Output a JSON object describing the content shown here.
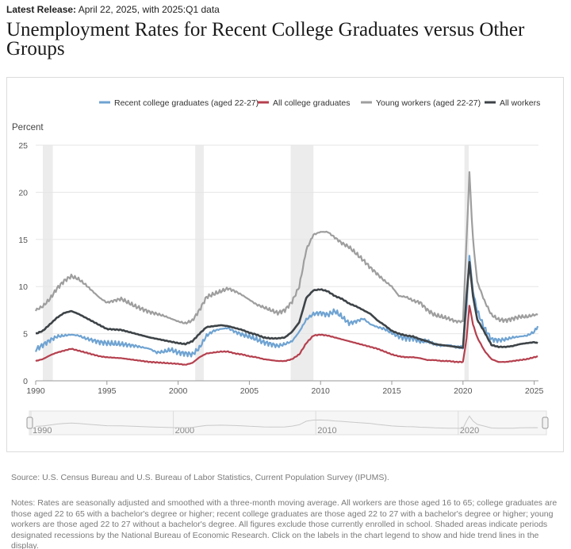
{
  "header": {
    "release_label": "Latest Release:",
    "release_text": "April 22, 2025, with 2025:Q1 data",
    "title": "Unemployment Rates for Recent College Graduates versus Other Groups"
  },
  "footer": {
    "source": "Source: U.S. Census Bureau and U.S. Bureau of Labor Statistics, Current Population Survey (IPUMS).",
    "notes": "Notes: Rates are seasonally adjusted and smoothed with a three-month moving average. All workers are those aged 16 to 65; college graduates are those aged 22 to 65 with a bachelor's degree or higher; recent college graduates are those aged 22 to 27 with a bachelor's degree or higher; young workers are those aged 22 to 27 without a bachelor's degree. All figures exclude those currently enrolled in school. Shaded areas indicate periods designated recessions by the National Bureau of Economic Research. Click on the labels in the chart legend to show and hide trend lines in the display."
  },
  "chart_data": {
    "type": "line",
    "ylabel": "Percent",
    "xlim": [
      1990,
      2025.3
    ],
    "ylim": [
      0,
      25
    ],
    "yticks": [
      "0",
      "5",
      "10",
      "15",
      "20",
      "25"
    ],
    "xticks": [
      "1990",
      "1995",
      "2000",
      "2005",
      "2010",
      "2015",
      "2020",
      "2025"
    ],
    "navigator_ticks": [
      "1990",
      "2000",
      "2010",
      "2020"
    ],
    "grid": true,
    "legend_position": "top-right",
    "recessions": [
      [
        1990.5,
        1991.2
      ],
      [
        2001.2,
        2001.8
      ],
      [
        2007.9,
        2009.5
      ],
      [
        2020.1,
        2020.4
      ]
    ],
    "series": [
      {
        "name": "Recent college graduates (aged 22-27)",
        "color": "#6fa3d2",
        "points": [
          [
            1990,
            3.3
          ],
          [
            1990.5,
            3.8
          ],
          [
            1991,
            4.3
          ],
          [
            1991.5,
            4.7
          ],
          [
            1992,
            4.8
          ],
          [
            1992.5,
            4.9
          ],
          [
            1993,
            4.8
          ],
          [
            1993.5,
            4.5
          ],
          [
            1994,
            4.3
          ],
          [
            1994.5,
            4.1
          ],
          [
            1995,
            4.0
          ],
          [
            1996,
            3.9
          ],
          [
            1997,
            3.7
          ],
          [
            1998,
            3.4
          ],
          [
            1998.5,
            3.0
          ],
          [
            1999,
            3.1
          ],
          [
            1999.5,
            3.3
          ],
          [
            2000,
            3.0
          ],
          [
            2000.5,
            2.9
          ],
          [
            2001,
            2.8
          ],
          [
            2001.5,
            3.5
          ],
          [
            2002,
            4.8
          ],
          [
            2002.5,
            5.3
          ],
          [
            2003,
            5.5
          ],
          [
            2003.5,
            5.6
          ],
          [
            2004,
            5.2
          ],
          [
            2004.5,
            4.9
          ],
          [
            2005,
            4.7
          ],
          [
            2005.5,
            4.4
          ],
          [
            2006,
            4.1
          ],
          [
            2006.5,
            3.9
          ],
          [
            2007,
            3.7
          ],
          [
            2007.5,
            3.9
          ],
          [
            2008,
            4.2
          ],
          [
            2008.5,
            5.2
          ],
          [
            2009,
            6.5
          ],
          [
            2009.5,
            7.1
          ],
          [
            2010,
            7.2
          ],
          [
            2010.5,
            7.0
          ],
          [
            2011,
            7.4
          ],
          [
            2011.5,
            6.8
          ],
          [
            2012,
            6.1
          ],
          [
            2012.5,
            6.3
          ],
          [
            2013,
            6.6
          ],
          [
            2013.5,
            6.0
          ],
          [
            2014,
            5.7
          ],
          [
            2014.5,
            5.5
          ],
          [
            2015,
            5.1
          ],
          [
            2015.5,
            4.7
          ],
          [
            2016,
            4.5
          ],
          [
            2016.5,
            4.5
          ],
          [
            2017,
            4.2
          ],
          [
            2017.5,
            4.2
          ],
          [
            2018,
            3.9
          ],
          [
            2018.5,
            3.7
          ],
          [
            2019,
            3.8
          ],
          [
            2019.5,
            3.6
          ],
          [
            2020,
            3.6
          ],
          [
            2020.25,
            8.0
          ],
          [
            2020.45,
            13.3
          ],
          [
            2020.7,
            9.5
          ],
          [
            2021,
            7.4
          ],
          [
            2021.5,
            5.6
          ],
          [
            2022,
            4.4
          ],
          [
            2022.5,
            4.3
          ],
          [
            2023,
            4.4
          ],
          [
            2023.5,
            4.6
          ],
          [
            2024,
            4.7
          ],
          [
            2024.5,
            4.8
          ],
          [
            2025,
            5.2
          ],
          [
            2025.25,
            5.8
          ]
        ]
      },
      {
        "name": "All college graduates",
        "color": "#b5404e",
        "points": [
          [
            1990,
            2.1
          ],
          [
            1990.5,
            2.3
          ],
          [
            1991,
            2.7
          ],
          [
            1991.5,
            3.0
          ],
          [
            1992,
            3.2
          ],
          [
            1992.5,
            3.4
          ],
          [
            1993,
            3.2
          ],
          [
            1993.5,
            3.0
          ],
          [
            1994,
            2.8
          ],
          [
            1994.5,
            2.6
          ],
          [
            1995,
            2.5
          ],
          [
            1996,
            2.4
          ],
          [
            1997,
            2.2
          ],
          [
            1998,
            2.0
          ],
          [
            1999,
            1.9
          ],
          [
            2000,
            1.8
          ],
          [
            2000.5,
            1.7
          ],
          [
            2001,
            1.9
          ],
          [
            2001.5,
            2.5
          ],
          [
            2002,
            2.9
          ],
          [
            2002.5,
            3.0
          ],
          [
            2003,
            3.1
          ],
          [
            2003.5,
            3.1
          ],
          [
            2004,
            2.9
          ],
          [
            2004.5,
            2.8
          ],
          [
            2005,
            2.6
          ],
          [
            2005.5,
            2.5
          ],
          [
            2006,
            2.3
          ],
          [
            2006.5,
            2.2
          ],
          [
            2007,
            2.1
          ],
          [
            2007.5,
            2.1
          ],
          [
            2008,
            2.3
          ],
          [
            2008.5,
            2.8
          ],
          [
            2009,
            4.0
          ],
          [
            2009.5,
            4.8
          ],
          [
            2010,
            4.9
          ],
          [
            2010.5,
            4.8
          ],
          [
            2011,
            4.6
          ],
          [
            2011.5,
            4.4
          ],
          [
            2012,
            4.2
          ],
          [
            2012.5,
            4.0
          ],
          [
            2013,
            3.8
          ],
          [
            2013.5,
            3.6
          ],
          [
            2014,
            3.4
          ],
          [
            2014.5,
            3.1
          ],
          [
            2015,
            2.8
          ],
          [
            2015.5,
            2.6
          ],
          [
            2016,
            2.5
          ],
          [
            2016.5,
            2.5
          ],
          [
            2017,
            2.4
          ],
          [
            2017.5,
            2.2
          ],
          [
            2018,
            2.2
          ],
          [
            2018.5,
            2.1
          ],
          [
            2019,
            2.1
          ],
          [
            2019.5,
            2.0
          ],
          [
            2020,
            2.0
          ],
          [
            2020.25,
            4.5
          ],
          [
            2020.45,
            8.0
          ],
          [
            2020.7,
            6.0
          ],
          [
            2021,
            4.6
          ],
          [
            2021.5,
            3.2
          ],
          [
            2022,
            2.3
          ],
          [
            2022.5,
            2.0
          ],
          [
            2023,
            2.0
          ],
          [
            2023.5,
            2.1
          ],
          [
            2024,
            2.2
          ],
          [
            2024.5,
            2.3
          ],
          [
            2025,
            2.5
          ],
          [
            2025.25,
            2.6
          ]
        ]
      },
      {
        "name": "Young workers (aged 22-27)",
        "color": "#9e9e9e",
        "points": [
          [
            1990,
            7.5
          ],
          [
            1990.5,
            7.9
          ],
          [
            1991,
            8.7
          ],
          [
            1991.5,
            9.8
          ],
          [
            1992,
            10.6
          ],
          [
            1992.5,
            11.1
          ],
          [
            1993,
            10.8
          ],
          [
            1993.5,
            10.2
          ],
          [
            1994,
            9.5
          ],
          [
            1994.5,
            8.8
          ],
          [
            1995,
            8.3
          ],
          [
            1996,
            8.7
          ],
          [
            1997,
            7.9
          ],
          [
            1998,
            7.3
          ],
          [
            1999,
            6.9
          ],
          [
            2000,
            6.3
          ],
          [
            2000.5,
            6.1
          ],
          [
            2001,
            6.4
          ],
          [
            2001.5,
            7.5
          ],
          [
            2002,
            8.9
          ],
          [
            2002.5,
            9.2
          ],
          [
            2003,
            9.5
          ],
          [
            2003.5,
            9.8
          ],
          [
            2004,
            9.5
          ],
          [
            2004.5,
            9.1
          ],
          [
            2005,
            8.6
          ],
          [
            2005.5,
            8.1
          ],
          [
            2006,
            7.8
          ],
          [
            2006.5,
            7.5
          ],
          [
            2007,
            7.2
          ],
          [
            2007.5,
            7.5
          ],
          [
            2008,
            8.4
          ],
          [
            2008.5,
            10.0
          ],
          [
            2009,
            13.9
          ],
          [
            2009.5,
            15.5
          ],
          [
            2010,
            15.8
          ],
          [
            2010.5,
            15.8
          ],
          [
            2011,
            15.2
          ],
          [
            2011.5,
            14.6
          ],
          [
            2012,
            14.2
          ],
          [
            2012.5,
            13.5
          ],
          [
            2013,
            12.8
          ],
          [
            2013.5,
            12.0
          ],
          [
            2014,
            11.3
          ],
          [
            2014.5,
            10.6
          ],
          [
            2015,
            10.0
          ],
          [
            2015.5,
            9.0
          ],
          [
            2016,
            8.9
          ],
          [
            2016.5,
            8.5
          ],
          [
            2017,
            8.3
          ],
          [
            2017.5,
            7.5
          ],
          [
            2018,
            7.0
          ],
          [
            2018.5,
            6.8
          ],
          [
            2019,
            6.6
          ],
          [
            2019.5,
            6.3
          ],
          [
            2020,
            6.3
          ],
          [
            2020.25,
            15.0
          ],
          [
            2020.45,
            22.0
          ],
          [
            2020.7,
            15.0
          ],
          [
            2021,
            10.5
          ],
          [
            2021.5,
            8.5
          ],
          [
            2022,
            7.0
          ],
          [
            2022.5,
            6.5
          ],
          [
            2023,
            6.4
          ],
          [
            2023.5,
            6.6
          ],
          [
            2024,
            6.8
          ],
          [
            2024.5,
            6.8
          ],
          [
            2025,
            7.0
          ],
          [
            2025.25,
            7.0
          ]
        ]
      },
      {
        "name": "All workers",
        "color": "#3d4347",
        "points": [
          [
            1990,
            5.0
          ],
          [
            1990.5,
            5.3
          ],
          [
            1991,
            6.0
          ],
          [
            1991.5,
            6.7
          ],
          [
            1992,
            7.2
          ],
          [
            1992.5,
            7.4
          ],
          [
            1993,
            7.1
          ],
          [
            1993.5,
            6.7
          ],
          [
            1994,
            6.3
          ],
          [
            1994.5,
            5.9
          ],
          [
            1995,
            5.5
          ],
          [
            1996,
            5.4
          ],
          [
            1997,
            5.0
          ],
          [
            1998,
            4.6
          ],
          [
            1999,
            4.3
          ],
          [
            2000,
            4.0
          ],
          [
            2000.5,
            3.9
          ],
          [
            2001,
            4.2
          ],
          [
            2001.5,
            5.0
          ],
          [
            2002,
            5.7
          ],
          [
            2002.5,
            5.8
          ],
          [
            2003,
            5.9
          ],
          [
            2003.5,
            5.8
          ],
          [
            2004,
            5.6
          ],
          [
            2004.5,
            5.4
          ],
          [
            2005,
            5.1
          ],
          [
            2005.5,
            4.9
          ],
          [
            2006,
            4.6
          ],
          [
            2006.5,
            4.5
          ],
          [
            2007,
            4.5
          ],
          [
            2007.5,
            4.6
          ],
          [
            2008,
            5.2
          ],
          [
            2008.5,
            6.2
          ],
          [
            2009,
            8.8
          ],
          [
            2009.5,
            9.6
          ],
          [
            2010,
            9.7
          ],
          [
            2010.5,
            9.5
          ],
          [
            2011,
            9.0
          ],
          [
            2011.5,
            8.7
          ],
          [
            2012,
            8.2
          ],
          [
            2012.5,
            7.9
          ],
          [
            2013,
            7.5
          ],
          [
            2013.5,
            7.1
          ],
          [
            2014,
            6.4
          ],
          [
            2014.5,
            5.9
          ],
          [
            2015,
            5.3
          ],
          [
            2015.5,
            5.0
          ],
          [
            2016,
            4.8
          ],
          [
            2016.5,
            4.7
          ],
          [
            2017,
            4.4
          ],
          [
            2017.5,
            4.2
          ],
          [
            2018,
            3.9
          ],
          [
            2018.5,
            3.8
          ],
          [
            2019,
            3.7
          ],
          [
            2019.5,
            3.6
          ],
          [
            2020,
            3.5
          ],
          [
            2020.25,
            9.0
          ],
          [
            2020.45,
            12.6
          ],
          [
            2020.7,
            9.0
          ],
          [
            2021,
            6.5
          ],
          [
            2021.5,
            5.2
          ],
          [
            2022,
            3.8
          ],
          [
            2022.5,
            3.6
          ],
          [
            2023,
            3.6
          ],
          [
            2023.5,
            3.7
          ],
          [
            2024,
            3.9
          ],
          [
            2024.5,
            4.0
          ],
          [
            2025,
            4.1
          ],
          [
            2025.25,
            4.0
          ]
        ]
      }
    ]
  }
}
